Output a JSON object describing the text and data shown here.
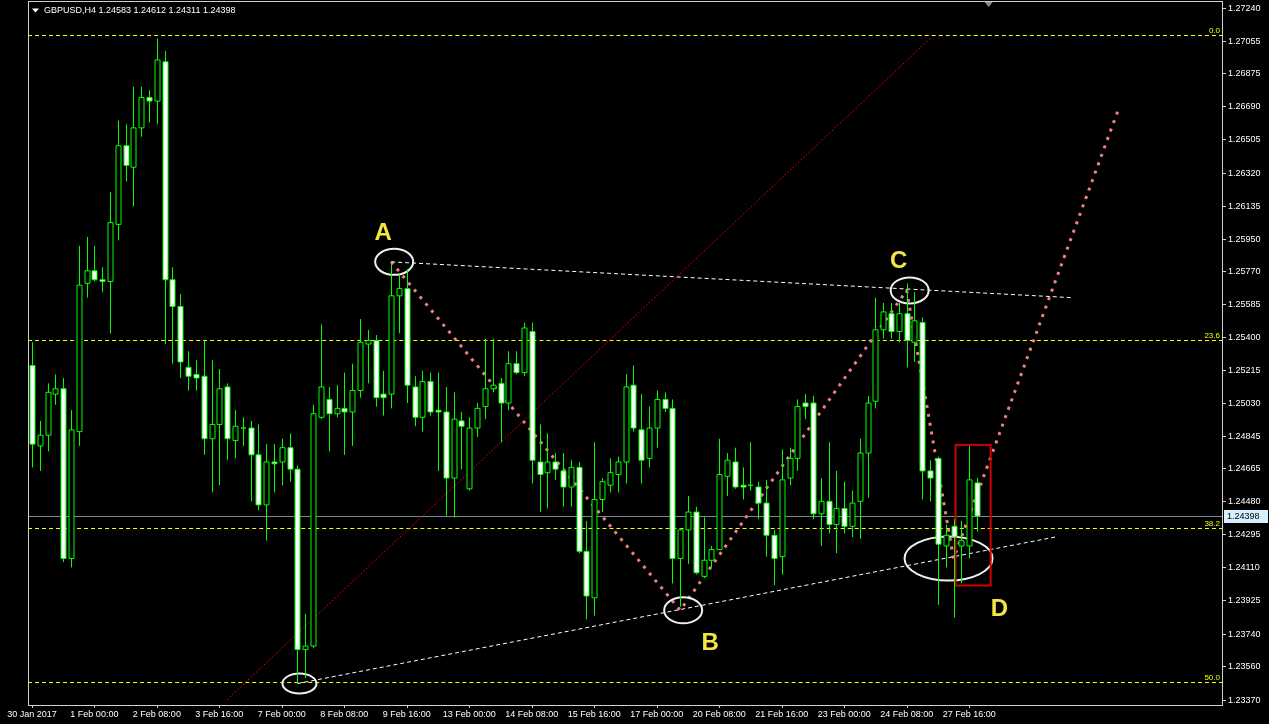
{
  "chart_data": {
    "type": "candlestick",
    "title": "GBPUSD,H4 1.24583 1.24612 1.24311 1.24398",
    "color": "#00ff00",
    "categories": [
      "30 Jan 2017",
      null,
      null,
      null,
      null,
      null,
      null,
      null,
      "1 Feb 00:00",
      null,
      null,
      null,
      null,
      null,
      null,
      null,
      "2 Feb 08:00",
      null,
      null,
      null,
      null,
      null,
      null,
      null,
      "3 Feb 16:00",
      null,
      null,
      null,
      null,
      null,
      null,
      null,
      "7 Feb 00:00",
      null,
      null,
      null,
      null,
      null,
      null,
      null,
      "8 Feb 08:00",
      null,
      null,
      null,
      null,
      null,
      null,
      null,
      "9 Feb 16:00",
      null,
      null,
      null,
      null,
      null,
      null,
      null,
      "13 Feb 00:00",
      null,
      null,
      null,
      null,
      null,
      null,
      null,
      "14 Feb 08:00",
      null,
      null,
      null,
      null,
      null,
      null,
      null,
      "15 Feb 16:00",
      null,
      null,
      null,
      null,
      null,
      null,
      null,
      "17 Feb 00:00",
      null,
      null,
      null,
      null,
      null,
      null,
      null,
      "20 Feb 08:00",
      null,
      null,
      null,
      null,
      null,
      null,
      null,
      "21 Feb 16:00",
      null,
      null,
      null,
      null,
      null,
      null,
      null,
      "23 Feb 00:00",
      null,
      null,
      null,
      null,
      null,
      null,
      null,
      "24 Feb 08:00",
      null,
      null,
      null,
      null,
      null,
      null,
      null,
      "27 Feb 16:00",
      null,
      null,
      null,
      null,
      null,
      null,
      null,
      null,
      null,
      null,
      null,
      null,
      null,
      null,
      null,
      null,
      null,
      null,
      null,
      null,
      null,
      null,
      null,
      null,
      null,
      null,
      null,
      null,
      null,
      null,
      null,
      null
    ],
    "ohlc": [
      [
        1.2524,
        1.2537,
        1.2467,
        1.248
      ],
      [
        1.2479,
        1.2493,
        1.2465,
        1.2485
      ],
      [
        1.2485,
        1.2514,
        1.2476,
        1.2509
      ],
      [
        1.2508,
        1.2519,
        1.2502,
        1.2511
      ],
      [
        1.2511,
        1.2517,
        1.2414,
        1.2416
      ],
      [
        1.2416,
        1.2499,
        1.2411,
        1.2488
      ],
      [
        1.2487,
        1.2591,
        1.2479,
        1.2569
      ],
      [
        1.257,
        1.2596,
        1.2562,
        1.2577
      ],
      [
        1.2577,
        1.2591,
        1.2571,
        1.2572
      ],
      [
        1.2572,
        1.2579,
        1.2565,
        1.2571
      ],
      [
        1.2571,
        1.2621,
        1.2542,
        1.2604
      ],
      [
        1.2603,
        1.2661,
        1.2594,
        1.2647
      ],
      [
        1.2647,
        1.2659,
        1.2627,
        1.2636
      ],
      [
        1.2635,
        1.268,
        1.2613,
        1.2657
      ],
      [
        1.2657,
        1.268,
        1.2652,
        1.2674
      ],
      [
        1.2674,
        1.2678,
        1.266,
        1.2672
      ],
      [
        1.2672,
        1.2707,
        1.2659,
        1.2695
      ],
      [
        1.2694,
        1.27,
        1.2536,
        1.2572
      ],
      [
        1.2572,
        1.2579,
        1.2525,
        1.2557
      ],
      [
        1.2557,
        1.2564,
        1.2517,
        1.2526
      ],
      [
        1.2523,
        1.2532,
        1.251,
        1.2518
      ],
      [
        1.2519,
        1.2527,
        1.251,
        1.2517
      ],
      [
        1.2518,
        1.2538,
        1.2474,
        1.2483
      ],
      [
        1.2483,
        1.2527,
        1.2453,
        1.2491
      ],
      [
        1.2491,
        1.2522,
        1.2457,
        1.2511
      ],
      [
        1.2512,
        1.2514,
        1.2471,
        1.2483
      ],
      [
        1.2482,
        1.2499,
        1.2472,
        1.249
      ],
      [
        1.2489,
        1.2495,
        1.2479,
        1.2489
      ],
      [
        1.2489,
        1.2493,
        1.2448,
        1.2474
      ],
      [
        1.2474,
        1.2491,
        1.2443,
        1.2446
      ],
      [
        1.2446,
        1.248,
        1.2426,
        1.247
      ],
      [
        1.247,
        1.248,
        1.2453,
        1.2469
      ],
      [
        1.247,
        1.2483,
        1.2457,
        1.2478
      ],
      [
        1.2478,
        1.2486,
        1.2459,
        1.2466
      ],
      [
        1.2466,
        1.2468,
        1.2346,
        1.2365
      ],
      [
        1.2365,
        1.2385,
        1.2349,
        1.2367
      ],
      [
        1.2367,
        1.2502,
        1.2366,
        1.2497
      ],
      [
        1.2495,
        1.2547,
        1.2494,
        1.2512
      ],
      [
        1.2505,
        1.2512,
        1.2476,
        1.2497
      ],
      [
        1.2497,
        1.2513,
        1.2495,
        1.25
      ],
      [
        1.25,
        1.252,
        1.2474,
        1.2498
      ],
      [
        1.2498,
        1.2525,
        1.2479,
        1.251
      ],
      [
        1.251,
        1.255,
        1.2506,
        1.2537
      ],
      [
        1.2536,
        1.2544,
        1.2514,
        1.2538
      ],
      [
        1.2538,
        1.2541,
        1.2501,
        1.2506
      ],
      [
        1.2508,
        1.2521,
        1.2496,
        1.2506
      ],
      [
        1.2508,
        1.2581,
        1.25,
        1.2563
      ],
      [
        1.2563,
        1.2575,
        1.2542,
        1.2567
      ],
      [
        1.2567,
        1.2578,
        1.2503,
        1.2513
      ],
      [
        1.2512,
        1.2518,
        1.249,
        1.2495
      ],
      [
        1.2495,
        1.2521,
        1.2487,
        1.2515
      ],
      [
        1.2515,
        1.252,
        1.2496,
        1.2498
      ],
      [
        1.2499,
        1.252,
        1.2465,
        1.2498
      ],
      [
        1.2498,
        1.2512,
        1.244,
        1.2461
      ],
      [
        1.2461,
        1.2509,
        1.2439,
        1.2494
      ],
      [
        1.2493,
        1.2498,
        1.2466,
        1.249
      ],
      [
        1.2455,
        1.2495,
        1.2454,
        1.2489
      ],
      [
        1.2489,
        1.2503,
        1.2484,
        1.25
      ],
      [
        1.2501,
        1.2539,
        1.2494,
        1.2511
      ],
      [
        1.2511,
        1.2539,
        1.2509,
        1.2513
      ],
      [
        1.2514,
        1.2517,
        1.2481,
        1.2503
      ],
      [
        1.2503,
        1.2532,
        1.2499,
        1.2525
      ],
      [
        1.2525,
        1.2532,
        1.2519,
        1.252
      ],
      [
        1.252,
        1.2548,
        1.2518,
        1.2545
      ],
      [
        1.2543,
        1.2548,
        1.2458,
        1.2471
      ],
      [
        1.247,
        1.2491,
        1.2442,
        1.2463
      ],
      [
        1.2464,
        1.2486,
        1.2444,
        1.247
      ],
      [
        1.247,
        1.2475,
        1.246,
        1.2466
      ],
      [
        1.2465,
        1.2475,
        1.2445,
        1.2456
      ],
      [
        1.2456,
        1.2471,
        1.2445,
        1.2467
      ],
      [
        1.2467,
        1.247,
        1.2419,
        1.242
      ],
      [
        1.242,
        1.2437,
        1.2382,
        1.2395
      ],
      [
        1.2394,
        1.2481,
        1.2384,
        1.2449
      ],
      [
        1.2449,
        1.2461,
        1.2442,
        1.2459
      ],
      [
        1.2457,
        1.2472,
        1.2453,
        1.2464
      ],
      [
        1.2463,
        1.2473,
        1.2453,
        1.247
      ],
      [
        1.247,
        1.2519,
        1.2458,
        1.2512
      ],
      [
        1.2513,
        1.2524,
        1.2487,
        1.2489
      ],
      [
        1.2488,
        1.2508,
        1.2458,
        1.2471
      ],
      [
        1.2472,
        1.2501,
        1.2467,
        1.2489
      ],
      [
        1.2489,
        1.251,
        1.2478,
        1.2505
      ],
      [
        1.2505,
        1.2509,
        1.2498,
        1.25
      ],
      [
        1.25,
        1.2505,
        1.2402,
        1.2416
      ],
      [
        1.2416,
        1.2433,
        1.2389,
        1.2432
      ],
      [
        1.2432,
        1.2451,
        1.2413,
        1.2442
      ],
      [
        1.2442,
        1.2445,
        1.2407,
        1.2408
      ],
      [
        1.2406,
        1.2439,
        1.2405,
        1.2415
      ],
      [
        1.2415,
        1.2423,
        1.2411,
        1.2421
      ],
      [
        1.2421,
        1.2483,
        1.2421,
        1.2463
      ],
      [
        1.2462,
        1.2475,
        1.2451,
        1.2471
      ],
      [
        1.247,
        1.2478,
        1.2455,
        1.2456
      ],
      [
        1.2457,
        1.2467,
        1.2449,
        1.2456
      ],
      [
        1.2457,
        1.2481,
        1.2454,
        1.2457
      ],
      [
        1.2456,
        1.2459,
        1.2438,
        1.2447
      ],
      [
        1.2447,
        1.246,
        1.2417,
        1.2429
      ],
      [
        1.2429,
        1.2432,
        1.2401,
        1.2416
      ],
      [
        1.2417,
        1.2477,
        1.2407,
        1.246
      ],
      [
        1.2461,
        1.2478,
        1.2457,
        1.2472
      ],
      [
        1.2472,
        1.2505,
        1.2465,
        1.2501
      ],
      [
        1.2503,
        1.2508,
        1.2494,
        1.2501
      ],
      [
        1.2503,
        1.2507,
        1.2438,
        1.2441
      ],
      [
        1.2441,
        1.2461,
        1.2423,
        1.2448
      ],
      [
        1.2448,
        1.2481,
        1.243,
        1.2435
      ],
      [
        1.2435,
        1.2465,
        1.2419,
        1.2444
      ],
      [
        1.2444,
        1.2459,
        1.243,
        1.2434
      ],
      [
        1.2434,
        1.2454,
        1.2428,
        1.2447
      ],
      [
        1.2448,
        1.2483,
        1.2427,
        1.2475
      ],
      [
        1.2475,
        1.2507,
        1.245,
        1.2503
      ],
      [
        1.2504,
        1.2562,
        1.25,
        1.2544
      ],
      [
        1.2544,
        1.2559,
        1.2539,
        1.2554
      ],
      [
        1.2553,
        1.2559,
        1.2539,
        1.2543
      ],
      [
        1.2543,
        1.2559,
        1.2537,
        1.2553
      ],
      [
        1.2553,
        1.257,
        1.2523,
        1.2538
      ],
      [
        1.2537,
        1.2565,
        1.2526,
        1.2549
      ],
      [
        1.2548,
        1.2551,
        1.2449,
        1.2465
      ],
      [
        1.2465,
        1.2471,
        1.2448,
        1.2461
      ],
      [
        1.2472,
        1.2473,
        1.239,
        1.2424
      ],
      [
        1.2423,
        1.2435,
        1.2411,
        1.2429
      ],
      [
        1.2434,
        1.2438,
        1.2383,
        1.2428
      ],
      [
        1.2423,
        1.2437,
        1.2402,
        1.2426
      ],
      [
        1.2423,
        1.2479,
        1.2416,
        1.246
      ],
      [
        1.24583,
        1.24612,
        1.24311,
        1.24398
      ],
      null,
      null,
      null,
      null,
      null,
      null,
      null,
      null,
      null,
      null,
      null,
      null,
      null,
      null,
      null,
      null,
      null,
      null,
      null,
      null,
      null,
      null,
      null,
      null,
      null,
      null,
      null,
      null,
      null,
      null,
      null
    ],
    "series": [
      {
        "type": "line",
        "color": "#f08080",
        "line_style": "dotted",
        "values": [
          null,
          null,
          null,
          null,
          null,
          null,
          null,
          null,
          null,
          null,
          null,
          null,
          null,
          null,
          null,
          null,
          null,
          null,
          null,
          null,
          null,
          null,
          null,
          null,
          null,
          null,
          null,
          null,
          null,
          null,
          null,
          null,
          null,
          null,
          null,
          null,
          null,
          null,
          null,
          null,
          null,
          null,
          null,
          null,
          null,
          null,
          1.2582,
          null,
          null,
          null,
          null,
          null,
          null,
          null,
          null,
          null,
          null,
          null,
          null,
          null,
          null,
          null,
          null,
          null,
          null,
          null,
          null,
          null,
          null,
          null,
          null,
          null,
          null,
          null,
          null,
          null,
          null,
          null,
          null,
          null,
          null,
          null,
          null,
          1.2387,
          null,
          null,
          null,
          null,
          null,
          null,
          null,
          null,
          null,
          null,
          null,
          null,
          null,
          null,
          null,
          null,
          null,
          null,
          null,
          null,
          null,
          null,
          null,
          null,
          null,
          null,
          null,
          null,
          1.2566,
          null,
          null,
          null,
          null,
          null,
          1.2416,
          null,
          null,
          null,
          null,
          null,
          null,
          null,
          null,
          null,
          null,
          null,
          null,
          null,
          null,
          null,
          null,
          null,
          null,
          null,
          null,
          1.2666,
          null,
          null,
          null,
          null,
          null,
          null,
          null,
          null,
          null,
          null,
          null,
          null,
          null
        ]
      },
      {
        "type": "line",
        "color": "#ffffff",
        "line_style": "dashed",
        "values": [
          null,
          null,
          null,
          null,
          null,
          null,
          null,
          null,
          null,
          null,
          null,
          null,
          null,
          null,
          null,
          null,
          null,
          null,
          null,
          null,
          null,
          null,
          null,
          null,
          null,
          null,
          null,
          null,
          null,
          null,
          null,
          null,
          null,
          null,
          null,
          null,
          null,
          null,
          null,
          null,
          null,
          null,
          null,
          null,
          null,
          null,
          1.2582,
          null,
          null,
          null,
          null,
          null,
          null,
          null,
          null,
          null,
          null,
          null,
          null,
          null,
          null,
          null,
          null,
          null,
          null,
          null,
          null,
          null,
          null,
          null,
          null,
          null,
          null,
          null,
          null,
          null,
          null,
          null,
          null,
          null,
          null,
          null,
          null,
          null,
          null,
          null,
          null,
          null,
          null,
          null,
          null,
          null,
          null,
          null,
          null,
          null,
          null,
          null,
          null,
          null,
          null,
          null,
          null,
          null,
          null,
          null,
          null,
          null,
          null,
          null,
          null,
          null,
          null,
          null,
          null,
          null,
          null,
          null,
          null,
          null,
          null,
          null,
          null,
          null,
          null,
          null,
          null,
          null,
          null,
          null,
          null,
          null,
          null,
          1.2562,
          null,
          null,
          null,
          null,
          null,
          null,
          null,
          null,
          null,
          null,
          null,
          null,
          null,
          null,
          null,
          null,
          null,
          null,
          null
        ]
      },
      {
        "type": "line",
        "color": "#ffffff",
        "line_style": "dashed",
        "values": [
          null,
          null,
          null,
          null,
          null,
          null,
          null,
          null,
          null,
          null,
          null,
          null,
          null,
          null,
          null,
          null,
          null,
          null,
          null,
          null,
          null,
          null,
          null,
          null,
          null,
          null,
          null,
          null,
          null,
          null,
          null,
          null,
          null,
          null,
          1.2346,
          null,
          null,
          null,
          null,
          null,
          null,
          null,
          null,
          null,
          null,
          null,
          null,
          null,
          null,
          null,
          null,
          null,
          null,
          null,
          null,
          null,
          null,
          null,
          null,
          null,
          null,
          null,
          null,
          null,
          null,
          null,
          null,
          null,
          null,
          null,
          null,
          null,
          null,
          null,
          null,
          null,
          null,
          null,
          null,
          null,
          null,
          null,
          null,
          null,
          null,
          null,
          null,
          null,
          null,
          null,
          null,
          null,
          null,
          null,
          null,
          null,
          null,
          null,
          null,
          null,
          null,
          null,
          null,
          null,
          null,
          null,
          null,
          null,
          null,
          null,
          null,
          null,
          null,
          null,
          null,
          null,
          null,
          null,
          null,
          null,
          null,
          null,
          null,
          null,
          null,
          null,
          null,
          null,
          null,
          null,
          null,
          1.2428,
          null,
          null,
          null,
          null,
          null,
          null,
          null,
          null,
          null,
          null,
          null,
          null,
          null,
          null,
          null,
          null,
          null,
          null,
          null,
          null,
          null
        ]
      },
      {
        "type": "line",
        "color": "#ff0000",
        "line_style": "dotted",
        "values": [
          null,
          null,
          null,
          null,
          null,
          null,
          null,
          null,
          null,
          null,
          null,
          null,
          null,
          null,
          null,
          null,
          null,
          null,
          null,
          null,
          null,
          null,
          null,
          null,
          null,
          1.2337,
          null,
          null,
          null,
          null,
          null,
          null,
          null,
          null,
          null,
          null,
          null,
          null,
          null,
          null,
          null,
          null,
          null,
          null,
          null,
          null,
          null,
          null,
          null,
          null,
          null,
          null,
          null,
          null,
          null,
          null,
          null,
          null,
          null,
          null,
          null,
          null,
          null,
          null,
          null,
          null,
          null,
          null,
          null,
          null,
          null,
          null,
          null,
          null,
          null,
          null,
          null,
          null,
          null,
          null,
          null,
          null,
          null,
          null,
          null,
          null,
          null,
          null,
          null,
          null,
          null,
          null,
          null,
          null,
          null,
          null,
          null,
          null,
          null,
          null,
          null,
          null,
          null,
          null,
          null,
          null,
          null,
          null,
          null,
          null,
          null,
          null,
          null,
          null,
          null,
          1.2707,
          null,
          null,
          null,
          null,
          null,
          null,
          null,
          null,
          null,
          null,
          null,
          null,
          null,
          null,
          null,
          null,
          null,
          null,
          null,
          null,
          null,
          null,
          null,
          null,
          null,
          null,
          null,
          null,
          null,
          null,
          null,
          null,
          null,
          null,
          null,
          null,
          null
        ]
      }
    ],
    "ref_lines": [
      {
        "axis": "y",
        "value": 1.2709,
        "color": "#ffff00",
        "line_style": "dashed"
      },
      {
        "axis": "y",
        "value": 1.2538,
        "color": "#ffff00",
        "line_style": "dashed"
      },
      {
        "axis": "y",
        "value": 1.2433,
        "color": "#ffff00",
        "line_style": "dashed"
      },
      {
        "axis": "y",
        "value": 1.2347,
        "color": "#ffff00",
        "line_style": "dashed"
      },
      {
        "axis": "y",
        "value": 1.24398,
        "label": "1.24398",
        "color": "#778899",
        "line_style": "solid"
      }
    ],
    "annotations": [
      "A",
      "B",
      "C",
      "D",
      {
        "text": "0.0",
        "y": 1.2709
      },
      {
        "text": "23.6",
        "y": 1.2538
      },
      {
        "text": "38.2",
        "y": 1.2433
      },
      {
        "text": "50.0",
        "y": 1.2347
      }
    ],
    "ylim": [
      1.2334,
      1.2728
    ],
    "yticks": [
      {
        "value": 1.2724,
        "label": "1.27240"
      },
      {
        "value": 1.27055,
        "label": "1.27055"
      },
      {
        "value": 1.26875,
        "label": "1.26875"
      },
      {
        "value": 1.2669,
        "label": "1.26690"
      },
      {
        "value": 1.26505,
        "label": "1.26505"
      },
      {
        "value": 1.2632,
        "label": "1.26320"
      },
      {
        "value": 1.26135,
        "label": "1.26135"
      },
      {
        "value": 1.2595,
        "label": "1.25950"
      },
      {
        "value": 1.2577,
        "label": "1.25770"
      },
      {
        "value": 1.25585,
        "label": "1.25585"
      },
      {
        "value": 1.254,
        "label": "1.25400"
      },
      {
        "value": 1.25215,
        "label": "1.25215"
      },
      {
        "value": 1.2503,
        "label": "1.25030"
      },
      {
        "value": 1.24845,
        "label": "1.24845"
      },
      {
        "value": 1.24665,
        "label": "1.24665"
      },
      {
        "value": 1.2448,
        "label": "1.24480"
      },
      {
        "value": 1.24295,
        "label": "1.24295"
      },
      {
        "value": 1.2411,
        "label": "1.24110"
      },
      {
        "value": 1.23925,
        "label": "1.23925"
      },
      {
        "value": 1.2374,
        "label": "1.23740"
      },
      {
        "value": 1.2356,
        "label": "1.23560"
      },
      {
        "value": 1.2337,
        "label": "1.23370"
      }
    ]
  }
}
